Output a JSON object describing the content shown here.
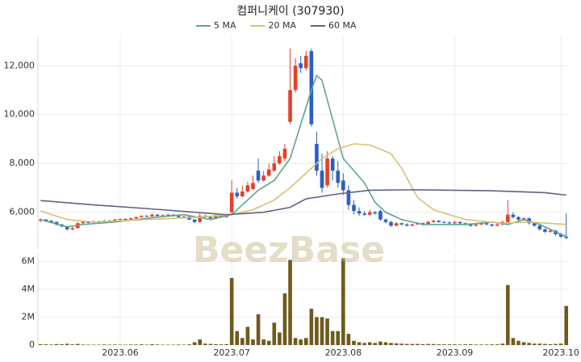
{
  "chart_data": [
    {
      "type": "candlestick",
      "title": "컴퍼니케이 (307930)",
      "watermark": "BeezBase",
      "up_color": "#e5402a",
      "down_color": "#2b5fc4",
      "x": [
        0,
        1,
        2,
        3,
        4,
        5,
        6,
        7,
        8,
        9,
        10,
        11,
        12,
        13,
        14,
        15,
        16,
        17,
        18,
        19,
        20,
        21,
        22,
        23,
        24,
        25,
        26,
        27,
        28,
        29,
        30,
        31,
        32,
        33,
        34,
        35,
        36,
        37,
        38,
        39,
        40,
        41,
        42,
        43,
        44,
        45,
        46,
        47,
        48,
        49,
        50,
        51,
        52,
        53,
        54,
        55,
        56,
        57,
        58,
        59,
        60,
        61,
        62,
        63,
        64,
        65,
        66,
        67,
        68,
        69,
        70,
        71,
        72,
        73,
        74,
        75,
        76,
        77,
        78,
        79,
        80,
        81,
        82,
        83,
        84,
        85,
        86,
        87,
        88,
        89,
        90,
        91,
        92,
        93,
        94,
        95,
        96,
        97,
        98,
        99
      ],
      "open": [
        5650,
        5700,
        5650,
        5600,
        5500,
        5420,
        5300,
        5350,
        5550,
        5600,
        5580,
        5620,
        5600,
        5650,
        5640,
        5700,
        5720,
        5700,
        5750,
        5800,
        5850,
        5830,
        5900,
        5850,
        5880,
        5900,
        5850,
        5800,
        5820,
        5700,
        5600,
        5850,
        5800,
        5750,
        5850,
        5800,
        6000,
        6800,
        6650,
        6850,
        6950,
        7700,
        7300,
        7500,
        7700,
        8000,
        8200,
        9700,
        11000,
        12100,
        11900,
        12600,
        8800,
        7700,
        7100,
        8200,
        7700,
        7300,
        6900,
        6300,
        6050,
        5950,
        5900,
        6000,
        6050,
        5700,
        5600,
        5450,
        5550,
        5500,
        5450,
        5500,
        5550,
        5500,
        5600,
        5650,
        5600,
        5580,
        5550,
        5600,
        5550,
        5500,
        5450,
        5500,
        5550,
        5500,
        5450,
        5500,
        5600,
        5900,
        5800,
        5700,
        5750,
        5550,
        5450,
        5300,
        5200,
        5250,
        5100,
        5000
      ],
      "high": [
        5750,
        5720,
        5680,
        5620,
        5520,
        5450,
        5400,
        5600,
        5650,
        5650,
        5660,
        5660,
        5700,
        5690,
        5730,
        5760,
        5750,
        5790,
        5830,
        5880,
        5880,
        5950,
        5930,
        5920,
        5940,
        5920,
        5880,
        5860,
        5840,
        5720,
        5950,
        5900,
        5850,
        5900,
        5880,
        5900,
        7300,
        7000,
        7100,
        7250,
        7500,
        8200,
        7700,
        8000,
        8300,
        8500,
        8800,
        12700,
        12300,
        12400,
        12600,
        12700,
        9300,
        8400,
        8500,
        8300,
        8100,
        7600,
        7100,
        6500,
        6200,
        6050,
        6100,
        6050,
        6100,
        5750,
        5650,
        5600,
        5580,
        5550,
        5530,
        5600,
        5580,
        5650,
        5700,
        5680,
        5640,
        5620,
        5650,
        5630,
        5580,
        5530,
        5550,
        5580,
        5580,
        5530,
        5550,
        5650,
        6500,
        6000,
        5850,
        5800,
        5780,
        5600,
        5500,
        5350,
        5300,
        5280,
        5150,
        5950
      ],
      "low": [
        5600,
        5600,
        5550,
        5450,
        5380,
        5250,
        5250,
        5330,
        5500,
        5550,
        5550,
        5560,
        5580,
        5600,
        5620,
        5680,
        5660,
        5680,
        5720,
        5780,
        5800,
        5820,
        5820,
        5830,
        5850,
        5820,
        5780,
        5770,
        5680,
        5550,
        5580,
        5750,
        5700,
        5720,
        5770,
        5780,
        5950,
        6550,
        6600,
        6800,
        6900,
        7200,
        7250,
        7450,
        7650,
        7950,
        8100,
        9600,
        10900,
        11700,
        11800,
        9500,
        7500,
        6800,
        7000,
        7300,
        7000,
        6700,
        6100,
        5900,
        5850,
        5850,
        5850,
        5900,
        5650,
        5550,
        5400,
        5420,
        5450,
        5420,
        5420,
        5480,
        5450,
        5480,
        5570,
        5570,
        5550,
        5520,
        5520,
        5500,
        5450,
        5400,
        5420,
        5470,
        5470,
        5420,
        5420,
        5450,
        5550,
        5750,
        5650,
        5650,
        5500,
        5400,
        5250,
        5150,
        5150,
        5050,
        4950,
        4900
      ],
      "close": [
        5700,
        5650,
        5600,
        5500,
        5420,
        5300,
        5350,
        5550,
        5600,
        5580,
        5620,
        5600,
        5650,
        5640,
        5700,
        5720,
        5700,
        5750,
        5800,
        5850,
        5830,
        5900,
        5850,
        5880,
        5900,
        5850,
        5800,
        5820,
        5700,
        5600,
        5850,
        5800,
        5750,
        5850,
        5800,
        5850,
        6800,
        6650,
        6850,
        7100,
        7200,
        7300,
        7500,
        7750,
        8000,
        8300,
        8600,
        11000,
        12000,
        11900,
        12400,
        9600,
        7700,
        7000,
        8200,
        7700,
        7200,
        6900,
        6300,
        6050,
        5950,
        5900,
        6000,
        5950,
        5700,
        5600,
        5450,
        5550,
        5500,
        5450,
        5500,
        5550,
        5500,
        5600,
        5650,
        5600,
        5580,
        5550,
        5600,
        5550,
        5500,
        5450,
        5500,
        5550,
        5500,
        5450,
        5500,
        5600,
        5900,
        5800,
        5700,
        5750,
        5550,
        5450,
        5300,
        5200,
        5250,
        5100,
        5000,
        4950
      ],
      "series": [
        {
          "name": "5 MA",
          "color": "#5fa58e",
          "x": [
            0,
            5,
            8,
            14,
            22,
            27,
            32,
            36,
            38,
            41,
            44,
            47,
            49,
            51,
            52,
            53,
            55,
            57,
            59,
            61,
            63,
            65,
            68,
            72,
            80,
            85,
            88,
            91,
            94,
            97,
            99
          ],
          "values": [
            5700,
            5400,
            5500,
            5600,
            5800,
            5900,
            5700,
            5900,
            6300,
            6900,
            7300,
            8200,
            9600,
            11000,
            11600,
            11400,
            9800,
            8200,
            7700,
            7200,
            6400,
            6000,
            5700,
            5500,
            5500,
            5600,
            5500,
            5700,
            5500,
            5200,
            5000
          ]
        },
        {
          "name": "20 MA",
          "color": "#d8c070",
          "x": [
            0,
            5,
            10,
            20,
            30,
            36,
            40,
            44,
            47,
            50,
            53,
            56,
            59,
            62,
            66,
            68,
            71,
            74,
            80,
            87,
            92,
            99
          ],
          "values": [
            6050,
            5700,
            5600,
            5700,
            5800,
            5900,
            6100,
            6500,
            7000,
            7600,
            8200,
            8600,
            8800,
            8750,
            8400,
            7800,
            6600,
            6100,
            5700,
            5550,
            5600,
            5500
          ]
        },
        {
          "name": "60 MA",
          "color": "#5c6482",
          "x": [
            0,
            10,
            20,
            35,
            42,
            47,
            50,
            56,
            62,
            70,
            85,
            95,
            99
          ],
          "values": [
            6480,
            6300,
            6150,
            5900,
            6000,
            6200,
            6550,
            6750,
            6900,
            6920,
            6880,
            6800,
            6700
          ]
        }
      ],
      "xlim": [
        -0.5,
        99.5
      ],
      "ylim": [
        4500,
        13200
      ],
      "yticks": [
        {
          "value": 6000,
          "label": "6,000"
        },
        {
          "value": 8000,
          "label": "8,000"
        },
        {
          "value": 10000,
          "label": "10,000"
        },
        {
          "value": 12000,
          "label": "12,000"
        }
      ]
    },
    {
      "type": "bar",
      "color": "#6e5a1c",
      "x": [
        0,
        1,
        2,
        3,
        4,
        5,
        6,
        7,
        8,
        9,
        10,
        11,
        12,
        13,
        14,
        15,
        16,
        17,
        18,
        19,
        20,
        21,
        22,
        23,
        24,
        25,
        26,
        27,
        28,
        29,
        30,
        31,
        32,
        33,
        34,
        35,
        36,
        37,
        38,
        39,
        40,
        41,
        42,
        43,
        44,
        45,
        46,
        47,
        48,
        49,
        50,
        51,
        52,
        53,
        54,
        55,
        56,
        57,
        58,
        59,
        60,
        61,
        62,
        63,
        64,
        65,
        66,
        67,
        68,
        69,
        70,
        71,
        72,
        73,
        74,
        75,
        76,
        77,
        78,
        79,
        80,
        81,
        82,
        83,
        84,
        85,
        86,
        87,
        88,
        89,
        90,
        91,
        92,
        93,
        94,
        95,
        96,
        97,
        98,
        99
      ],
      "values": [
        60000,
        50000,
        40000,
        70000,
        60000,
        90000,
        50000,
        80000,
        40000,
        30000,
        30000,
        30000,
        40000,
        30000,
        40000,
        30000,
        30000,
        40000,
        40000,
        50000,
        30000,
        60000,
        40000,
        30000,
        30000,
        30000,
        40000,
        30000,
        50000,
        200000,
        400000,
        100000,
        80000,
        60000,
        50000,
        60000,
        4800000,
        1000000,
        500000,
        1300000,
        400000,
        2200000,
        400000,
        300000,
        1600000,
        900000,
        3700000,
        6100000,
        500000,
        400000,
        500000,
        2600000,
        2000000,
        2000000,
        1900000,
        1000000,
        1000000,
        6200000,
        800000,
        300000,
        200000,
        150000,
        200000,
        150000,
        250000,
        200000,
        150000,
        120000,
        100000,
        80000,
        80000,
        80000,
        60000,
        80000,
        70000,
        50000,
        50000,
        50000,
        50000,
        40000,
        50000,
        60000,
        40000,
        40000,
        40000,
        50000,
        50000,
        100000,
        4300000,
        500000,
        300000,
        200000,
        150000,
        100000,
        100000,
        80000,
        60000,
        80000,
        100000,
        2800000
      ],
      "xlim": [
        -0.5,
        99.5
      ],
      "ylim": [
        0,
        6600000
      ],
      "yticks": [
        0,
        {
          "value": 2000000,
          "label": "2M"
        },
        {
          "value": 4000000,
          "label": "4M"
        },
        {
          "value": 6000000,
          "label": "6M"
        }
      ],
      "xticks": [
        {
          "value": 15,
          "label": "2023.06"
        },
        {
          "value": 36,
          "label": "2023.07"
        },
        {
          "value": 57,
          "label": "2023.08"
        },
        {
          "value": 78,
          "label": "2023.09"
        },
        {
          "value": 98,
          "label": "2023.10"
        }
      ]
    }
  ]
}
